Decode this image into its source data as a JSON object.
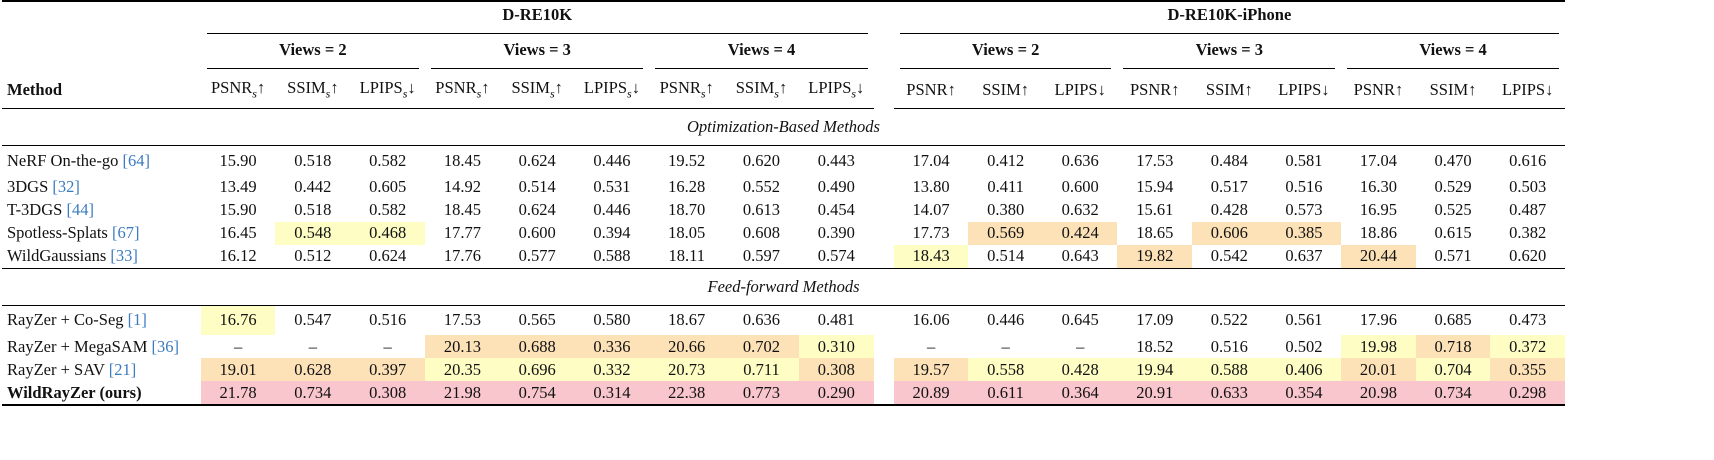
{
  "header": {
    "method": "Method",
    "datasets": [
      {
        "name": "D-RE10K",
        "views": [
          "Views = 2",
          "Views = 3",
          "Views = 4"
        ],
        "metrics": [
          {
            "name": "PSNR",
            "sub": "s",
            "arrow": "↑"
          },
          {
            "name": "SSIM",
            "sub": "s",
            "arrow": "↑"
          },
          {
            "name": "LPIPS",
            "sub": "s",
            "arrow": "↓"
          }
        ]
      },
      {
        "name": "D-RE10K-iPhone",
        "views": [
          "Views = 2",
          "Views = 3",
          "Views = 4"
        ],
        "metrics": [
          {
            "name": "PSNR",
            "arrow": "↑"
          },
          {
            "name": "SSIM",
            "arrow": "↑"
          },
          {
            "name": "LPIPS",
            "arrow": "↓"
          }
        ]
      }
    ]
  },
  "palette": {
    "y": "#fdfdc4",
    "o": "#fde2b8",
    "r": "#f8c6cc"
  },
  "sections": [
    {
      "title": "Optimization-Based Methods",
      "rows": [
        {
          "method": "NeRF On-the-go",
          "ref": "[64]",
          "values": [
            "15.90",
            "0.518",
            "0.582",
            "18.45",
            "0.624",
            "0.446",
            "19.52",
            "0.620",
            "0.443",
            "17.04",
            "0.412",
            "0.636",
            "17.53",
            "0.484",
            "0.581",
            "17.04",
            "0.470",
            "0.616"
          ]
        },
        {
          "method": "3DGS",
          "ref": "[32]",
          "values": [
            "13.49",
            "0.442",
            "0.605",
            "14.92",
            "0.514",
            "0.531",
            "16.28",
            "0.552",
            "0.490",
            "13.80",
            "0.411",
            "0.600",
            "15.94",
            "0.517",
            "0.516",
            "16.30",
            "0.529",
            "0.503"
          ]
        },
        {
          "method": "T-3DGS",
          "ref": "[44]",
          "values": [
            "15.90",
            "0.518",
            "0.582",
            "18.45",
            "0.624",
            "0.446",
            "18.70",
            "0.613",
            "0.454",
            "14.07",
            "0.380",
            "0.632",
            "15.61",
            "0.428",
            "0.573",
            "16.95",
            "0.525",
            "0.487"
          ]
        },
        {
          "method": "Spotless-Splats",
          "ref": "[67]",
          "values": [
            "16.45",
            "0.548",
            "0.468",
            "17.77",
            "0.600",
            "0.394",
            "18.05",
            "0.608",
            "0.390",
            "17.73",
            "0.569",
            "0.424",
            "18.65",
            "0.606",
            "0.385",
            "18.86",
            "0.615",
            "0.382"
          ],
          "highlight": [
            null,
            "y",
            "y",
            null,
            null,
            null,
            null,
            null,
            null,
            null,
            "o",
            "o",
            null,
            "o",
            "o",
            null,
            null,
            null
          ]
        },
        {
          "method": "WildGaussians",
          "ref": "[33]",
          "values": [
            "16.12",
            "0.512",
            "0.624",
            "17.76",
            "0.577",
            "0.588",
            "18.11",
            "0.597",
            "0.574",
            "18.43",
            "0.514",
            "0.643",
            "19.82",
            "0.542",
            "0.637",
            "20.44",
            "0.571",
            "0.620"
          ],
          "highlight": [
            null,
            null,
            null,
            null,
            null,
            null,
            null,
            null,
            null,
            "y",
            null,
            null,
            "o",
            null,
            null,
            "o",
            null,
            null
          ]
        }
      ]
    },
    {
      "title": "Feed-forward Methods",
      "rows": [
        {
          "method": "RayZer + Co-Seg",
          "ref": "[1]",
          "values": [
            "16.76",
            "0.547",
            "0.516",
            "17.53",
            "0.565",
            "0.580",
            "18.67",
            "0.636",
            "0.481",
            "16.06",
            "0.446",
            "0.645",
            "17.09",
            "0.522",
            "0.561",
            "17.96",
            "0.685",
            "0.473"
          ],
          "highlight": [
            "y",
            null,
            null,
            null,
            null,
            null,
            null,
            null,
            null,
            null,
            null,
            null,
            null,
            null,
            null,
            null,
            null,
            null
          ]
        },
        {
          "method": "RayZer + MegaSAM",
          "ref": "[36]",
          "values": [
            "–",
            "–",
            "–",
            "20.13",
            "0.688",
            "0.336",
            "20.66",
            "0.702",
            "0.310",
            "–",
            "–",
            "–",
            "18.52",
            "0.516",
            "0.502",
            "19.98",
            "0.718",
            "0.372"
          ],
          "highlight": [
            null,
            null,
            null,
            "o",
            "o",
            "o",
            "o",
            "o",
            "y",
            null,
            null,
            null,
            null,
            null,
            null,
            "y",
            "o",
            "y"
          ]
        },
        {
          "method": "RayZer + SAV",
          "ref": "[21]",
          "values": [
            "19.01",
            "0.628",
            "0.397",
            "20.35",
            "0.696",
            "0.332",
            "20.73",
            "0.711",
            "0.308",
            "19.57",
            "0.558",
            "0.428",
            "19.94",
            "0.588",
            "0.406",
            "20.01",
            "0.704",
            "0.355"
          ],
          "highlight": [
            "o",
            "o",
            "o",
            "y",
            "y",
            "y",
            "y",
            "y",
            "o",
            "o",
            "y",
            "y",
            "y",
            "y",
            "y",
            "o",
            "y",
            "o"
          ]
        },
        {
          "method": "WildRayZer (ours)",
          "bold": true,
          "values": [
            "21.78",
            "0.734",
            "0.308",
            "21.98",
            "0.754",
            "0.314",
            "22.38",
            "0.773",
            "0.290",
            "20.89",
            "0.611",
            "0.364",
            "20.91",
            "0.633",
            "0.354",
            "20.98",
            "0.734",
            "0.298"
          ],
          "highlight": [
            "r",
            "r",
            "r",
            "r",
            "r",
            "r",
            "r",
            "r",
            "r",
            "r",
            "r",
            "r",
            "r",
            "r",
            "r",
            "r",
            "r",
            "r"
          ]
        }
      ]
    }
  ]
}
